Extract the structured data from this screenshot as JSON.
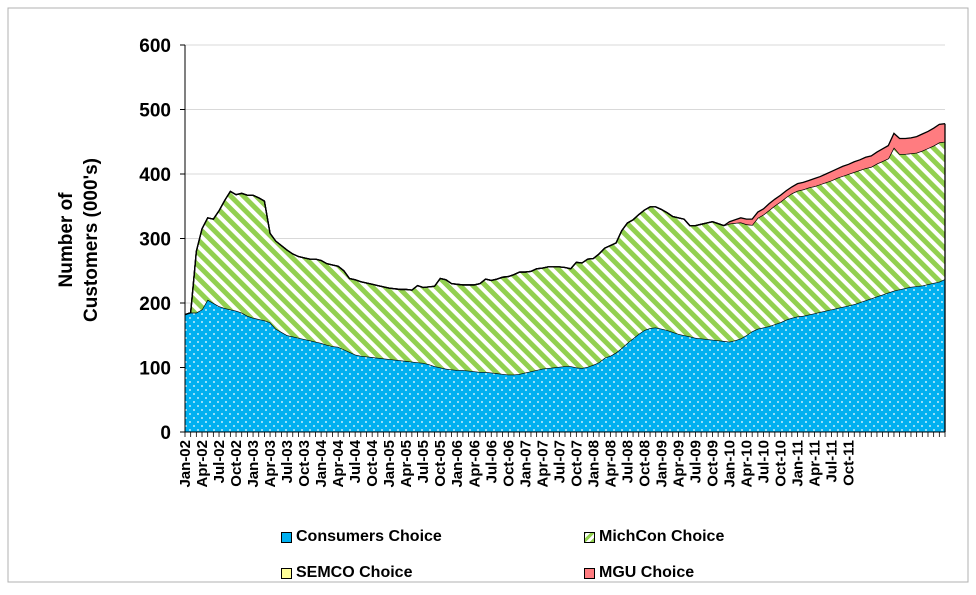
{
  "chart_data": {
    "type": "area",
    "stacked": true,
    "title": "",
    "ylabel_line1": "Number of",
    "ylabel_line2": "Customers (000's)",
    "xlabel": "",
    "ylim": [
      0,
      600
    ],
    "yticks": [
      "0",
      "100",
      "200",
      "300",
      "400",
      "500",
      "600"
    ],
    "grid": "horizontal",
    "legend_placement": "bottom",
    "x_tick_labels": [
      "Jan-02",
      "Apr-02",
      "Jul-02",
      "Oct-02",
      "Jan-03",
      "Apr-03",
      "Jul-03",
      "Oct-03",
      "Jan-04",
      "Apr-04",
      "Jul-04",
      "Oct-04",
      "Jan-05",
      "Apr-05",
      "Jul-05",
      "Oct-05",
      "Jan-06",
      "Apr-06",
      "Jul-06",
      "Oct-06",
      "Jan-07",
      "Apr-07",
      "Jul-07",
      "Oct-07",
      "Jan-08",
      "Apr-08",
      "Jul-08",
      "Oct-08",
      "Jan-09",
      "Apr-09",
      "Jul-09",
      "Oct-09",
      "Jan-10",
      "Apr-10",
      "Jul-10",
      "Oct-10",
      "Jan-11",
      "Apr-11",
      "Jul-11",
      "Oct-11"
    ],
    "x_start": "Jan-02",
    "x_frequency": "monthly",
    "series": [
      {
        "name": "Consumers Choice",
        "color": "#00B0F0",
        "pattern": "dots",
        "values": [
          182,
          185,
          185,
          190,
          205,
          200,
          195,
          192,
          190,
          188,
          185,
          180,
          177,
          175,
          173,
          170,
          160,
          155,
          150,
          148,
          146,
          144,
          142,
          140,
          138,
          135,
          133,
          132,
          128,
          124,
          120,
          118,
          117,
          116,
          115,
          114,
          113,
          112,
          111,
          110,
          109,
          108,
          107,
          105,
          102,
          100,
          98,
          97,
          96,
          96,
          95,
          94,
          93,
          93,
          92,
          91,
          90,
          89,
          89,
          90,
          92,
          94,
          96,
          98,
          99,
          100,
          101,
          102,
          102,
          100,
          99,
          101,
          104,
          108,
          115,
          118,
          123,
          130,
          138,
          145,
          152,
          158,
          161,
          162,
          160,
          158,
          155,
          152,
          150,
          148,
          146,
          145,
          144,
          143,
          142,
          141,
          140,
          142,
          145,
          150,
          156,
          160,
          162,
          164,
          167,
          170,
          174,
          177,
          179,
          180,
          182,
          184,
          186,
          188,
          190,
          192,
          194,
          196,
          198,
          201,
          204,
          207,
          210,
          213,
          216,
          219,
          221,
          223,
          225,
          226,
          227,
          229,
          231,
          233,
          237
        ]
      },
      {
        "name": "MichCon Choice",
        "color": "#92D050",
        "pattern": "diagonal",
        "values": [
          0,
          0,
          95,
          125,
          127,
          130,
          148,
          167,
          183,
          180,
          185,
          187,
          190,
          188,
          185,
          138,
          136,
          134,
          132,
          128,
          126,
          126,
          126,
          128,
          128,
          126,
          126,
          125,
          122,
          114,
          116,
          115,
          114,
          113,
          112,
          111,
          110,
          110,
          110,
          111,
          111,
          119,
          117,
          120,
          124,
          138,
          138,
          133,
          133,
          132,
          133,
          134,
          137,
          144,
          143,
          146,
          150,
          152,
          155,
          158,
          156,
          155,
          157,
          156,
          157,
          156,
          155,
          153,
          151,
          163,
          163,
          167,
          165,
          168,
          170,
          171,
          170,
          182,
          186,
          184,
          185,
          186,
          188,
          187,
          185,
          182,
          179,
          180,
          180,
          172,
          174,
          177,
          180,
          183,
          181,
          179,
          183,
          182,
          180,
          172,
          165,
          172,
          175,
          180,
          184,
          187,
          190,
          193,
          195,
          196,
          197,
          197,
          198,
          199,
          200,
          202,
          203,
          204,
          205,
          205,
          205,
          204,
          206,
          207,
          208,
          222,
          210,
          208,
          207,
          207,
          209,
          211,
          213,
          216,
          213
        ]
      },
      {
        "name": "SEMCO Choice",
        "color": "#FFFF99",
        "pattern": "solid",
        "values": [
          0,
          0,
          0,
          0,
          0,
          0,
          0,
          0,
          0,
          0,
          0,
          0,
          0,
          0,
          0,
          0,
          0,
          0,
          0,
          0,
          0,
          0,
          0,
          0,
          0,
          0,
          0,
          0,
          0,
          0,
          0,
          0,
          0,
          0,
          0,
          0,
          0,
          0,
          0,
          0,
          0,
          0,
          0,
          0,
          0,
          0,
          0,
          0,
          0,
          0,
          0,
          0,
          0,
          0,
          0,
          0,
          0,
          0,
          0,
          0,
          0,
          0,
          0,
          0,
          0,
          0,
          0,
          0,
          0,
          0,
          0,
          0,
          0,
          0,
          0,
          0,
          0,
          0,
          0,
          0,
          0,
          0,
          0,
          0,
          0,
          0,
          0,
          0,
          0,
          0,
          0,
          0,
          0,
          0,
          0,
          0,
          0,
          0,
          0,
          0,
          0,
          0,
          0,
          0,
          0,
          0,
          0,
          0,
          0,
          0,
          0,
          0,
          0,
          0,
          0,
          0,
          0,
          0,
          0,
          0,
          0,
          0,
          0,
          0,
          0,
          0,
          0,
          0,
          0,
          0,
          0,
          0,
          0,
          0,
          0
        ]
      },
      {
        "name": "MGU Choice",
        "color": "#FF7C80",
        "pattern": "solid",
        "values": [
          0,
          0,
          0,
          0,
          0,
          0,
          0,
          0,
          0,
          0,
          0,
          0,
          0,
          0,
          0,
          0,
          0,
          0,
          0,
          0,
          0,
          0,
          0,
          0,
          0,
          0,
          0,
          0,
          0,
          0,
          0,
          0,
          0,
          0,
          0,
          0,
          0,
          0,
          0,
          0,
          0,
          0,
          0,
          0,
          0,
          0,
          0,
          0,
          0,
          0,
          0,
          0,
          0,
          0,
          0,
          0,
          0,
          0,
          0,
          0,
          0,
          0,
          0,
          0,
          0,
          0,
          0,
          0,
          0,
          0,
          0,
          0,
          0,
          0,
          0,
          0,
          0,
          0,
          0,
          0,
          0,
          0,
          0,
          0,
          0,
          0,
          0,
          0,
          0,
          0,
          0,
          0,
          0,
          0,
          0,
          0,
          3,
          5,
          7,
          8,
          9,
          9,
          9,
          10,
          10,
          10,
          10,
          10,
          11,
          11,
          11,
          12,
          12,
          13,
          14,
          14,
          15,
          15,
          16,
          16,
          17,
          17,
          18,
          19,
          20,
          22,
          24,
          24,
          24,
          25,
          26,
          26,
          27,
          28,
          28
        ]
      }
    ]
  }
}
